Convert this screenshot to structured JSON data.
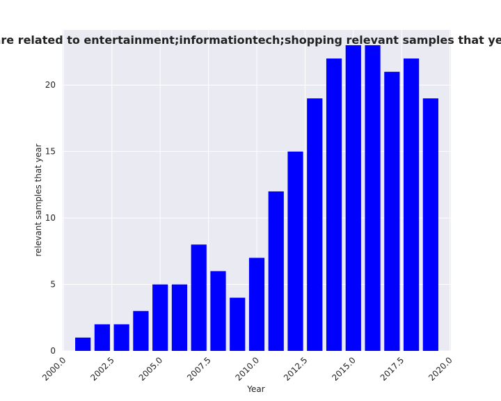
{
  "chart_data": {
    "type": "bar",
    "title": "…samples are related to entertainment;informationtech;shopping relevant samples that year in privacy",
    "xlabel": "Year",
    "ylabel": "relevant samples that year",
    "x": [
      2001,
      2002,
      2003,
      2004,
      2005,
      2006,
      2007,
      2008,
      2009,
      2010,
      2011,
      2012,
      2013,
      2014,
      2015,
      2016,
      2017,
      2018,
      2019
    ],
    "values": [
      1,
      2,
      2,
      3,
      5,
      5,
      8,
      6,
      4,
      7,
      12,
      15,
      19,
      22,
      23,
      23,
      21,
      22,
      19
    ],
    "xlim": [
      1999.95,
      2020.05
    ],
    "ylim": [
      0,
      24.15
    ],
    "xticks": [
      "2000.0",
      "2002.5",
      "2005.0",
      "2007.5",
      "2010.0",
      "2012.5",
      "2015.0",
      "2017.5",
      "2020.0"
    ],
    "yticks": [
      "0",
      "5",
      "10",
      "15",
      "20"
    ],
    "bar_color": "#0000ff",
    "background": "#eaeaf2",
    "grid": true,
    "legend": "none"
  }
}
